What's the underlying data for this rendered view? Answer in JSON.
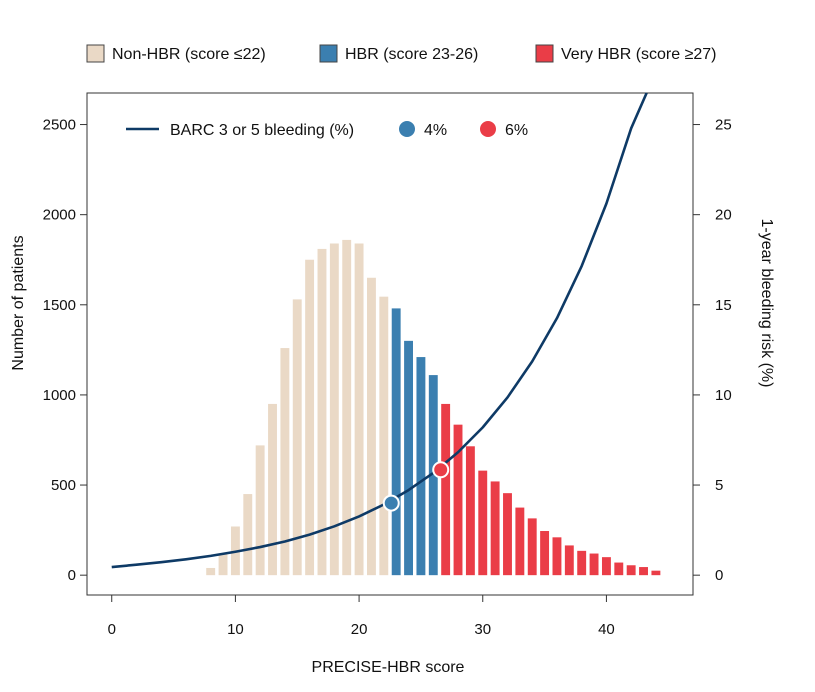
{
  "chart_data": {
    "type": "bar",
    "xlabel": "PRECISE-HBR score",
    "ylabel_left": "Number of patients",
    "ylabel_right": "1-year bleeding risk (%)",
    "xlim": [
      -2,
      47
    ],
    "ylim_left": [
      -110,
      2675
    ],
    "ylim_right": [
      -1.1,
      26.75
    ],
    "x_ticks": [
      0,
      10,
      20,
      30,
      40
    ],
    "y_left_ticks": [
      0,
      500,
      1000,
      1500,
      2000,
      2500
    ],
    "y_right_ticks": [
      0,
      5,
      10,
      15,
      20,
      25
    ],
    "grid": false,
    "bar_groups": [
      {
        "name": "Non-HBR (score ≤22)",
        "color": "#ead9c6",
        "edge": "#6b6b6b"
      },
      {
        "name": "HBR (score 23-26)",
        "color": "#3b7fb0",
        "edge": "#1d4e75"
      },
      {
        "name": "Very HBR (score ≥27)",
        "color": "#ea3d47",
        "edge": "#8d1f25"
      }
    ],
    "bars": {
      "x": [
        8,
        9,
        10,
        11,
        12,
        13,
        14,
        15,
        16,
        17,
        18,
        19,
        20,
        21,
        22,
        23,
        24,
        25,
        26,
        27,
        28,
        29,
        30,
        31,
        32,
        33,
        34,
        35,
        36,
        37,
        38,
        39,
        40,
        41,
        42,
        43,
        44
      ],
      "values": [
        40,
        115,
        270,
        450,
        720,
        950,
        1260,
        1530,
        1750,
        1810,
        1840,
        1860,
        1840,
        1650,
        1545,
        1480,
        1300,
        1210,
        1110,
        950,
        835,
        715,
        580,
        520,
        455,
        375,
        315,
        245,
        210,
        165,
        135,
        120,
        100,
        70,
        55,
        45,
        25
      ],
      "group": [
        0,
        0,
        0,
        0,
        0,
        0,
        0,
        0,
        0,
        0,
        0,
        0,
        0,
        0,
        0,
        1,
        1,
        1,
        1,
        2,
        2,
        2,
        2,
        2,
        2,
        2,
        2,
        2,
        2,
        2,
        2,
        2,
        2,
        2,
        2,
        2,
        2
      ]
    },
    "line": {
      "name": "BARC 3 or 5 bleeding (%)",
      "color": "#0e3a66",
      "x": [
        0,
        2,
        4,
        6,
        8,
        10,
        12,
        14,
        16,
        18,
        20,
        22,
        24,
        26,
        28,
        30,
        32,
        34,
        36,
        38,
        40,
        42,
        43.25
      ],
      "y": [
        0.45,
        0.58,
        0.72,
        0.88,
        1.07,
        1.3,
        1.56,
        1.87,
        2.25,
        2.71,
        3.26,
        3.92,
        4.72,
        5.67,
        6.82,
        8.2,
        9.86,
        11.86,
        14.26,
        17.15,
        20.62,
        24.79,
        26.75
      ]
    },
    "markers": [
      {
        "label": "4%",
        "x": 22.6,
        "y": 4.0,
        "color": "#3b7fb0"
      },
      {
        "label": "6%",
        "x": 26.6,
        "y": 5.85,
        "color": "#ea3d47"
      }
    ]
  }
}
